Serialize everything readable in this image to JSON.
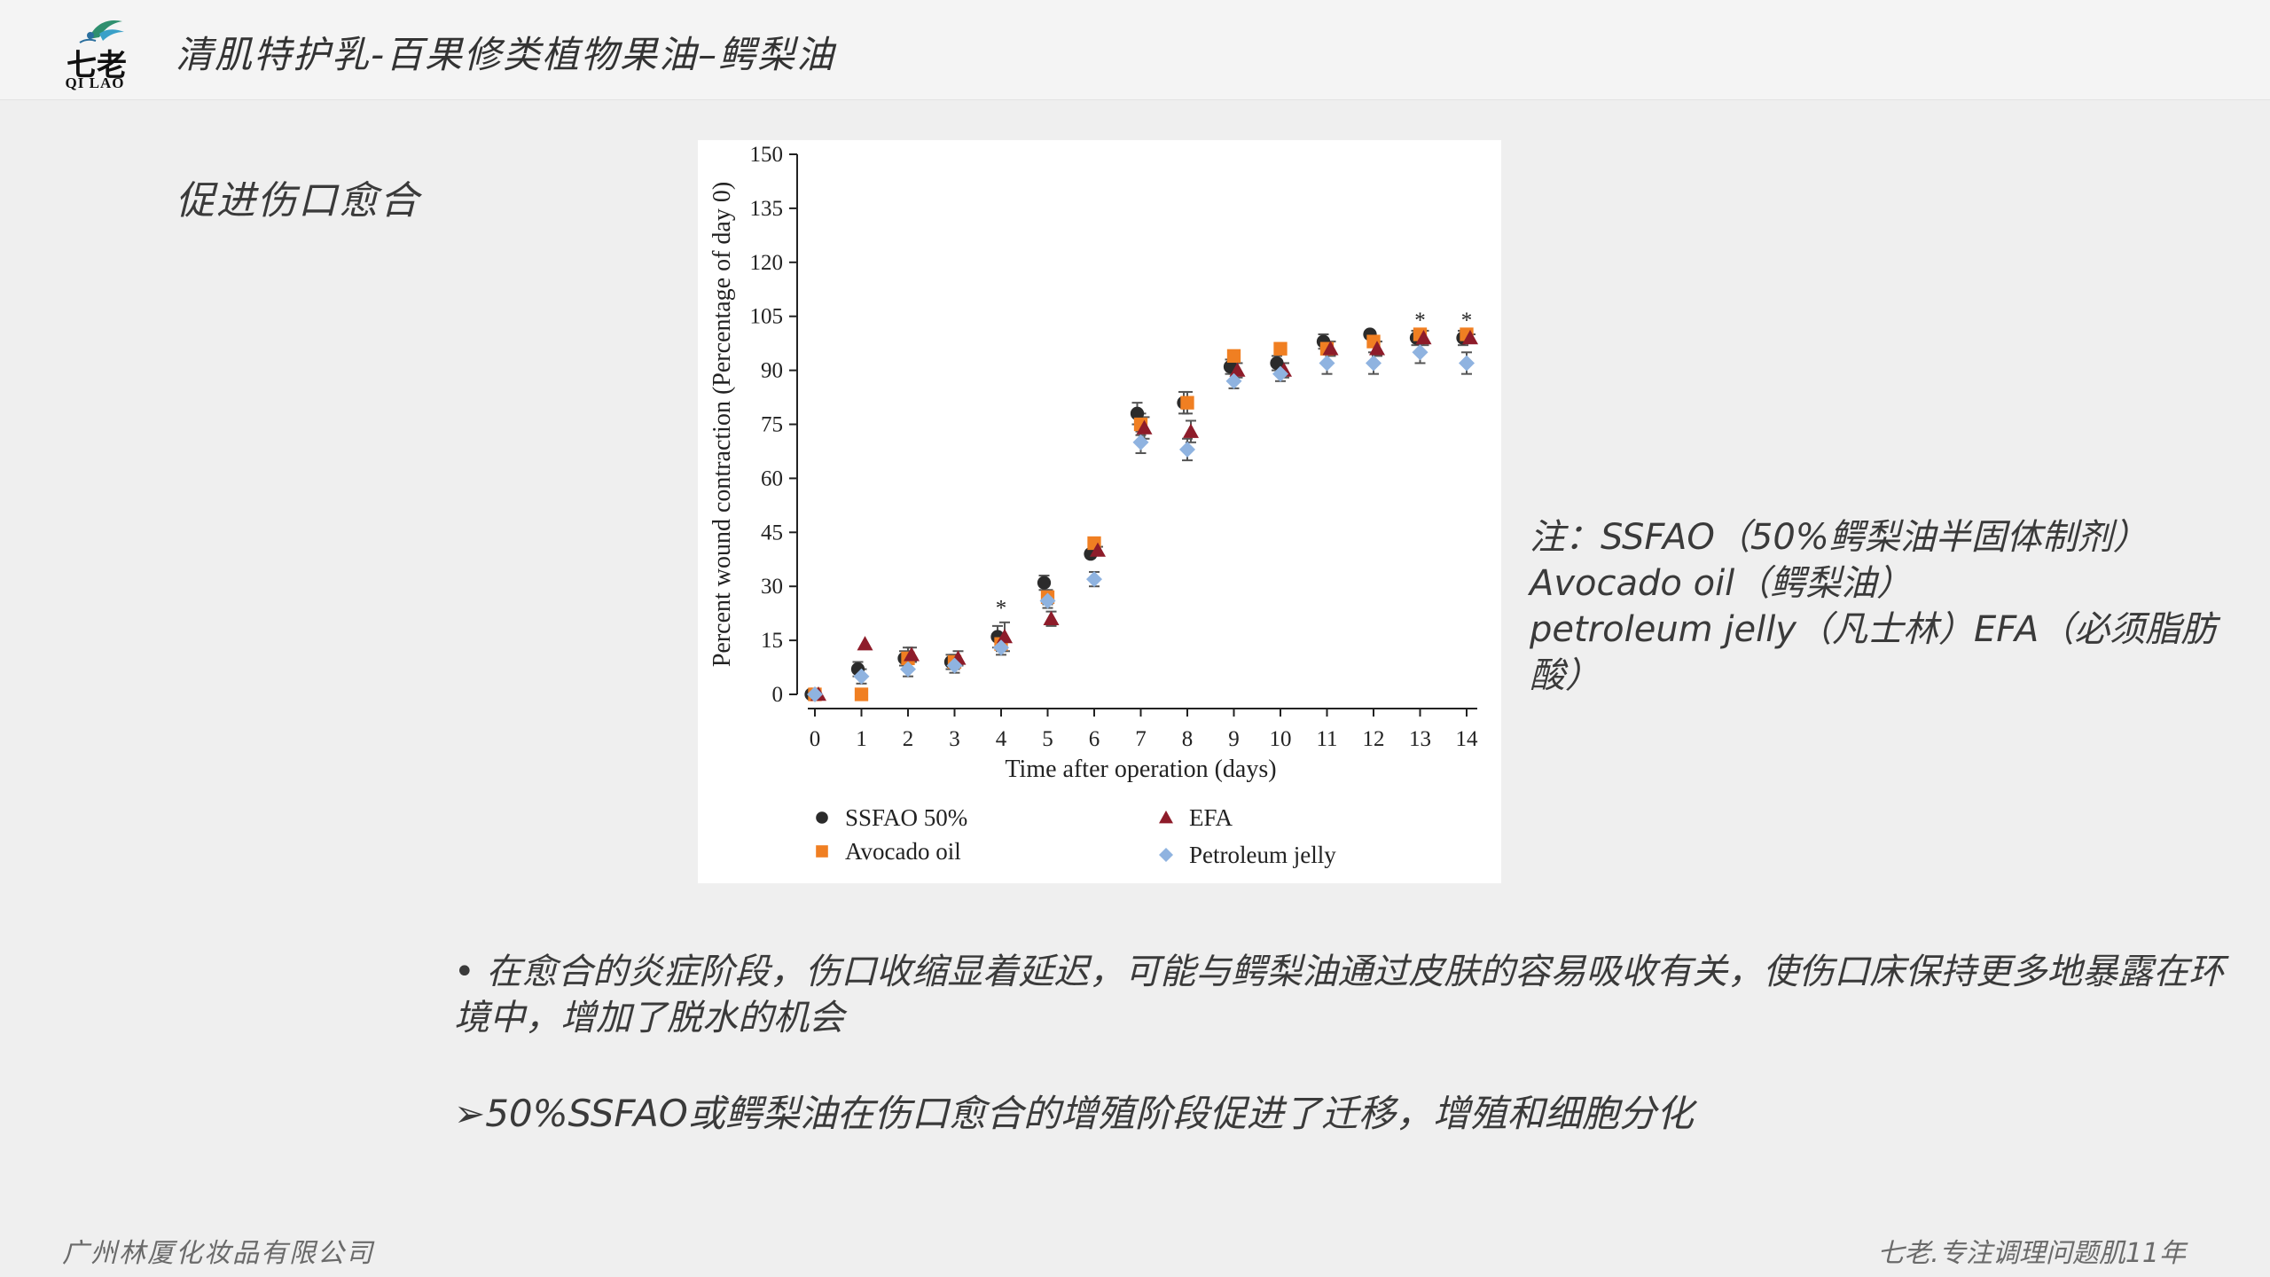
{
  "header": {
    "title": "清肌特护乳-百果修类植物果油–鳄梨油",
    "logo_cn": "七老",
    "logo_en": "QI LAO"
  },
  "section_title": "促进伤口愈合",
  "note": {
    "line1": "注：SSFAO（50%鳄梨油半固体制剂）",
    "line2": "Avocado oil（鳄梨油）",
    "line3": "petroleum jelly（凡士林）EFA（必须脂肪",
    "line4": "酸）"
  },
  "bullets": {
    "b1": "• 在愈合的炎症阶段，伤口收缩显着延迟，可能与鳄梨油通过皮肤的容易吸收有关，使伤口床保持更多地暴露在环境中，增加了脱水的机会",
    "b2": "➢50%SSFAO或鳄梨油在伤口愈合的增殖阶段促进了迁移，增殖和细胞分化"
  },
  "footer": {
    "left": "广州林厦化妆品有限公司",
    "right": "七老.专注调理问题肌11年"
  },
  "colors": {
    "ssfao": "#2b2b2b",
    "avocado": "#f07f22",
    "efa": "#8e1c2a",
    "petroleum": "#8fb3e0",
    "errorbar": "#555555"
  },
  "chart_data": {
    "type": "scatter",
    "xlabel": "Time after operation (days)",
    "ylabel": "Percent wound contraction (Percentage of day 0)",
    "x": [
      0,
      1,
      2,
      3,
      4,
      5,
      6,
      7,
      8,
      9,
      10,
      11,
      12,
      13,
      14
    ],
    "xlim": [
      0,
      14
    ],
    "ylim": [
      0,
      150
    ],
    "yticks": [
      0,
      15,
      30,
      45,
      60,
      75,
      90,
      105,
      120,
      135,
      150
    ],
    "grid": false,
    "legend_position": "bottom",
    "series": [
      {
        "name": "SSFAO 50%",
        "marker": "circle",
        "color": "#2b2b2b",
        "values": [
          0,
          7,
          10,
          9,
          16,
          31,
          39,
          78,
          81,
          91,
          92,
          98,
          100,
          99,
          99
        ],
        "errors": [
          0,
          2,
          2,
          2,
          3,
          2,
          1,
          3,
          3,
          2,
          2,
          2,
          1,
          2,
          2
        ]
      },
      {
        "name": "Avocado oil",
        "marker": "square",
        "color": "#f07f22",
        "values": [
          0,
          0,
          10,
          9,
          14,
          27,
          42,
          75,
          81,
          94,
          96,
          96,
          98,
          100,
          100
        ],
        "errors": [
          0,
          0,
          3,
          2,
          2,
          2,
          1,
          3,
          3,
          1,
          1,
          1,
          1,
          1,
          1
        ]
      },
      {
        "name": "EFA",
        "marker": "triangle",
        "color": "#8e1c2a",
        "values": [
          0,
          14,
          11,
          10,
          16,
          21,
          40,
          74,
          73,
          90,
          90,
          96,
          96,
          99,
          99
        ],
        "errors": [
          0,
          0,
          2,
          2,
          4,
          2,
          1,
          3,
          3,
          2,
          2,
          2,
          2,
          2,
          1
        ]
      },
      {
        "name": "Petroleum jelly",
        "marker": "diamond",
        "color": "#8fb3e0",
        "values": [
          0,
          5,
          7,
          8,
          13,
          26,
          32,
          70,
          68,
          87,
          89,
          92,
          92,
          95,
          92
        ],
        "errors": [
          0,
          2,
          2,
          2,
          2,
          2,
          2,
          3,
          3,
          2,
          2,
          3,
          3,
          3,
          3
        ]
      }
    ],
    "annotations": [
      {
        "x": 4,
        "y": 24,
        "text": "*"
      },
      {
        "x": 13,
        "y": 104,
        "text": "*"
      },
      {
        "x": 14,
        "y": 104,
        "text": "*"
      }
    ]
  }
}
